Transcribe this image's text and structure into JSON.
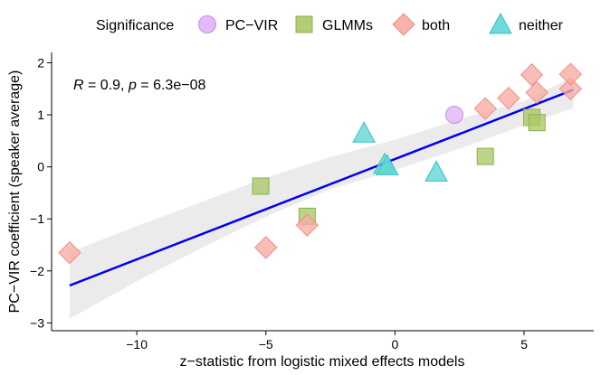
{
  "chart_data": {
    "type": "scatter",
    "xlabel": "z−statistic from logistic mixed effects models",
    "ylabel": "PC−VIR coefficient (speaker average)",
    "xlim": [
      -13.3,
      7.7
    ],
    "ylim": [
      -3.15,
      2.2
    ],
    "x_ticks": [
      -10,
      -5,
      0,
      5
    ],
    "x_tick_labels": [
      "−10",
      "−5",
      "0",
      "5"
    ],
    "y_ticks": [
      -3,
      -2,
      -1,
      0,
      1,
      2
    ],
    "y_tick_labels": [
      "−3",
      "−2",
      "−1",
      "0",
      "1",
      "2"
    ],
    "grid": false,
    "legend": {
      "title": "Significance",
      "position": "top",
      "entries": [
        {
          "name": "PC−VIR",
          "shape": "circle",
          "color": "#e0b3f5",
          "stroke": "#c98be8"
        },
        {
          "name": "GLMMs",
          "shape": "square",
          "color": "#a8c866",
          "stroke": "#8fb04a"
        },
        {
          "name": "both",
          "shape": "diamond",
          "color": "#f7aaa3",
          "stroke": "#ee8f86"
        },
        {
          "name": "neither",
          "shape": "triangle",
          "color": "#5fd6d6",
          "stroke": "#38c0c0"
        }
      ]
    },
    "annotation": {
      "r_label": "R",
      "r_value": " = 0.9, ",
      "p_label": "p",
      "p_value": " = 6.3e−08"
    },
    "regression": {
      "x_start": -12.6,
      "y_start": -2.28,
      "x_end": 6.9,
      "y_end": 1.48,
      "color": "#0000ee"
    },
    "confidence_band": {
      "x": [
        -12.6,
        -10,
        -7.5,
        -5,
        -2.5,
        0,
        2.5,
        5,
        6.9
      ],
      "lower": [
        -2.92,
        -2.2,
        -1.56,
        -0.96,
        -0.43,
        -0.06,
        0.35,
        0.8,
        1.13
      ],
      "upper": [
        -1.64,
        -1.14,
        -0.68,
        -0.21,
        0.19,
        0.52,
        0.92,
        1.26,
        1.74
      ],
      "color": "#ebebeb"
    },
    "series": [
      {
        "name": "PC−VIR",
        "points": [
          [
            2.3,
            1.0
          ]
        ]
      },
      {
        "name": "GLMMs",
        "points": [
          [
            -5.2,
            -0.37
          ],
          [
            -3.4,
            -0.95
          ],
          [
            3.5,
            0.2
          ],
          [
            5.3,
            0.95
          ],
          [
            5.5,
            0.85
          ]
        ]
      },
      {
        "name": "both",
        "points": [
          [
            -12.6,
            -1.65
          ],
          [
            -5.0,
            -1.55
          ],
          [
            -3.4,
            -1.12
          ],
          [
            3.5,
            1.12
          ],
          [
            4.4,
            1.32
          ],
          [
            5.3,
            1.77
          ],
          [
            5.5,
            1.43
          ],
          [
            6.8,
            1.5
          ],
          [
            6.8,
            1.78
          ]
        ]
      },
      {
        "name": "neither",
        "points": [
          [
            -1.2,
            0.65
          ],
          [
            -0.4,
            0.05
          ],
          [
            -0.3,
            0.02
          ],
          [
            1.6,
            -0.1
          ]
        ]
      }
    ]
  }
}
